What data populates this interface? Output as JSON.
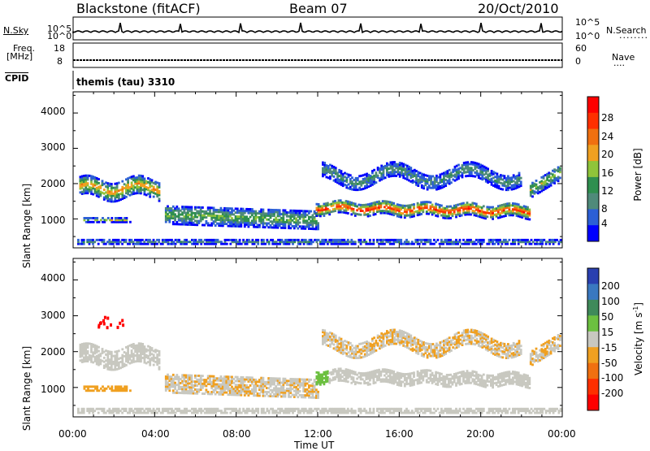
{
  "header": {
    "station": "Blackstone (fitACF)",
    "beam": "Beam 07",
    "date": "20/Oct/2010"
  },
  "status_panels": {
    "nsky_label": "N.Sky",
    "nsearch_label": "N.Search",
    "freq_label_1": "Freq.",
    "freq_label_2": "[MHz]",
    "nave_label": "Nave",
    "cpid_label": "CPID",
    "cpid_value": "themis (tau) 3310",
    "noise_ticks_left": [
      "10^5",
      "10^0"
    ],
    "noise_ticks_right": [
      "10^5",
      "10^0"
    ],
    "freq_ticks": [
      "18",
      "8"
    ],
    "nave_ticks": [
      "60",
      "0"
    ]
  },
  "colors": {
    "power_scale": [
      "#0000ff",
      "#2c5fd6",
      "#4f8a7a",
      "#2f8f4f",
      "#8fc43a",
      "#f0a020",
      "#f07010",
      "#ff3000",
      "#ff0000"
    ],
    "velocity_scale": [
      "#2a40b0",
      "#3a78c0",
      "#3f8a5a",
      "#6cc040",
      "#c8c8c0",
      "#f0a020",
      "#f07010",
      "#ff3000",
      "#ff0000"
    ]
  },
  "chart_data": [
    {
      "type": "heatmap",
      "panel": "power",
      "ylabel": "Slant Range [km]",
      "yticks": [
        "4000",
        "3000",
        "2000",
        "1000"
      ],
      "ylim": [
        180,
        4600
      ],
      "xlim_hours": [
        0,
        24
      ],
      "colorbar_label": "Power [dB]",
      "colorbar_ticks": [
        "28",
        "24",
        "20",
        "16",
        "12",
        "8",
        "4"
      ],
      "colorbar_range": [
        0,
        32
      ]
    },
    {
      "type": "heatmap",
      "panel": "velocity",
      "ylabel": "Slant Range [km]",
      "yticks": [
        "4000",
        "3000",
        "2000",
        "1000"
      ],
      "ylim": [
        180,
        4600
      ],
      "xlim_hours": [
        0,
        24
      ],
      "colorbar_label": "Velocity [m s",
      "colorbar_label_sup": "-1",
      "colorbar_label_end": "]",
      "colorbar_ticks": [
        "200",
        "100",
        "50",
        "15",
        "-15",
        "-50",
        "-100",
        "-200"
      ]
    }
  ],
  "xaxis": {
    "ticks": [
      "00:00",
      "04:00",
      "08:00",
      "12:00",
      "16:00",
      "20:00",
      "00:00"
    ],
    "label": "Time UT"
  }
}
